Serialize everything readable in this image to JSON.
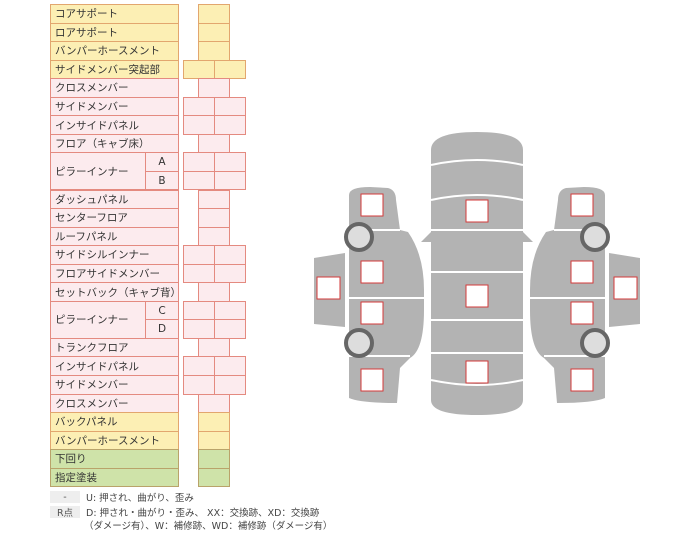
{
  "colors": {
    "yellow": "#fcefb4",
    "pink": "#fcebee",
    "green": "#cfe3a9",
    "border": "#e48a80",
    "panel": "#b3b3b3",
    "marker": "#d33a3a"
  },
  "rows": [
    {
      "label": "コアサポート",
      "color": "yellow",
      "cells": 1
    },
    {
      "label": "ロアサポート",
      "color": "yellow",
      "cells": 1
    },
    {
      "label": "バンパーホースメント",
      "color": "yellow",
      "cells": 1
    },
    {
      "label": "サイドメンバー突起部",
      "color": "yellow",
      "cells": 2
    },
    {
      "label": "クロスメンバー",
      "color": "pink",
      "cells": 1
    },
    {
      "label": "サイドメンバー",
      "color": "pink",
      "cells": 2
    },
    {
      "label": "インサイドパネル",
      "color": "pink",
      "cells": 2
    },
    {
      "label": "フロア（キャブ床）",
      "color": "pink",
      "cells": 1
    },
    {
      "label": "ピラーインナー",
      "color": "pink",
      "cells": 2,
      "subs": [
        "A",
        "B"
      ]
    },
    {
      "label": "ダッシュパネル",
      "color": "pink",
      "cells": 1
    },
    {
      "label": "センターフロア",
      "color": "pink",
      "cells": 1
    },
    {
      "label": "ルーフパネル",
      "color": "pink",
      "cells": 1
    },
    {
      "label": "サイドシルインナー",
      "color": "pink",
      "cells": 2
    },
    {
      "label": "フロアサイドメンバー",
      "color": "pink",
      "cells": 2
    },
    {
      "label": "セットバック（キャブ背）",
      "color": "pink",
      "cells": 1
    },
    {
      "label": "ピラーインナー",
      "color": "pink",
      "cells": 2,
      "subs": [
        "C",
        "D"
      ]
    },
    {
      "label": "トランクフロア",
      "color": "pink",
      "cells": 1
    },
    {
      "label": "インサイドパネル",
      "color": "pink",
      "cells": 2
    },
    {
      "label": "サイドメンバー",
      "color": "pink",
      "cells": 2
    },
    {
      "label": "クロスメンバー",
      "color": "pink",
      "cells": 1
    },
    {
      "label": "バックパネル",
      "color": "yellow",
      "cells": 1
    },
    {
      "label": "バンパーホースメント",
      "color": "yellow",
      "cells": 1
    },
    {
      "label": "下回り",
      "color": "green",
      "cells": 1
    },
    {
      "label": "指定塗装",
      "color": "green",
      "cells": 1
    }
  ],
  "legend": [
    {
      "key": "-",
      "lines": [
        "U: 押され、曲がり、歪み"
      ]
    },
    {
      "key": "R点",
      "lines": [
        "D: 押され・曲がり・歪み、 XX：交換跡、XD：交換跡",
        "（ダメージ有）、W：補修跡、WD：補修跡（ダメージ有）"
      ]
    }
  ]
}
